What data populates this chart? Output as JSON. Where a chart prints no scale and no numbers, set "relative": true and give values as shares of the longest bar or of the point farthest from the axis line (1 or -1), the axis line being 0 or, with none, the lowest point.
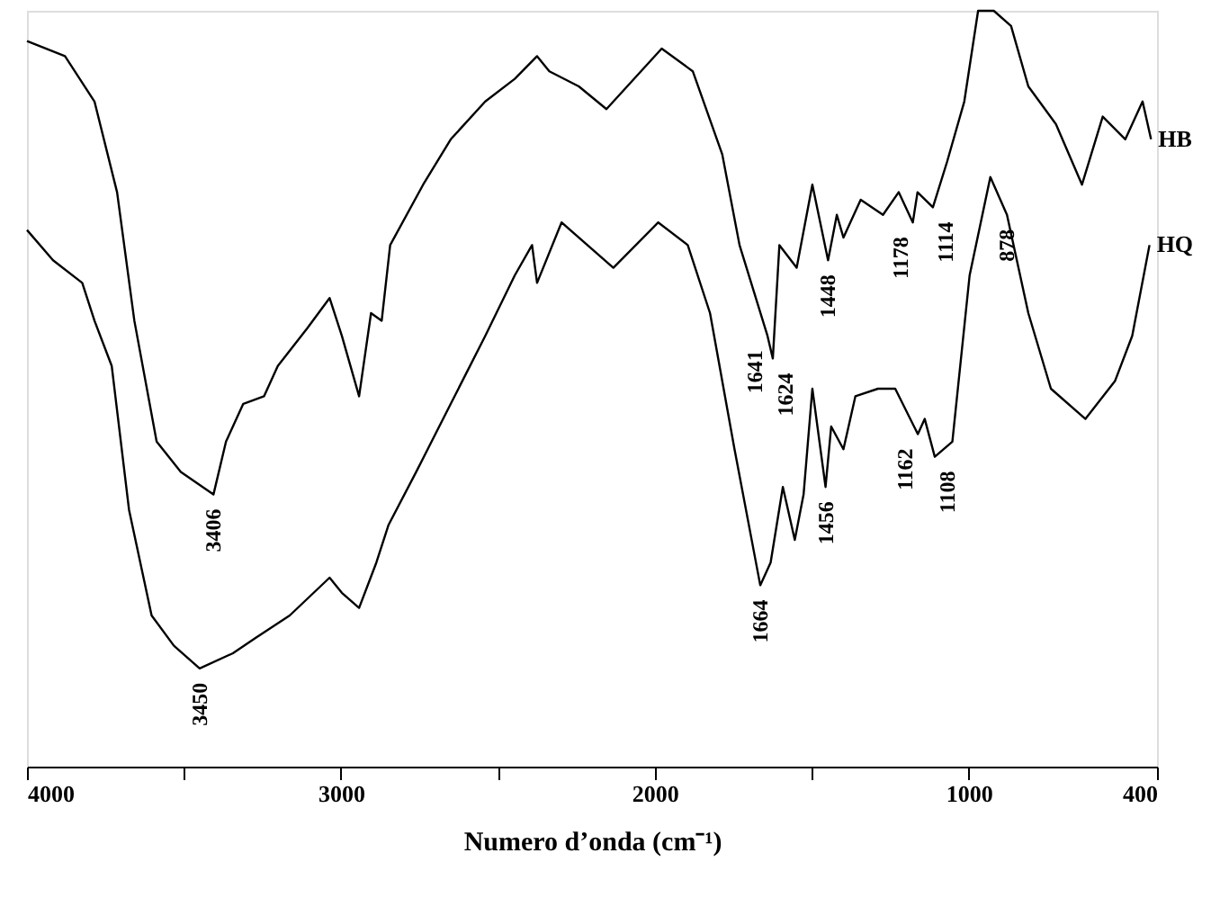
{
  "chart_data": {
    "type": "line",
    "relative": true,
    "xlabel": "Numero d’onda (cm⁻¹)",
    "xlim": [
      4000,
      400
    ],
    "xticks": [
      4000,
      {
        "value": 3500,
        "label": null
      },
      3000,
      {
        "value": 2500,
        "label": null
      },
      2000,
      {
        "value": 1500,
        "label": null
      },
      1000,
      400
    ],
    "grid": false,
    "legend": false,
    "marker": "none",
    "line_style": "solid",
    "series": [
      {
        "name": "HB",
        "color": "#000000",
        "x": [
          4000,
          3879,
          3785,
          3713,
          3658,
          3587,
          3510,
          3406,
          3366,
          3311,
          3245,
          3201,
          3107,
          3036,
          2997,
          2942,
          2904,
          2870,
          2843,
          2738,
          2650,
          2540,
          2446,
          2375,
          2336,
          2242,
          2154,
          1978,
          1879,
          1785,
          1730,
          1641,
          1624,
          1603,
          1548,
          1498,
          1448,
          1420,
          1399,
          1344,
          1273,
          1223,
          1178,
          1163,
          1114,
          1069,
          1014,
          970,
          920,
          865,
          810,
          722,
          639,
          573,
          501,
          446,
          419
        ],
        "values": [
          0.96,
          0.94,
          0.88,
          0.76,
          0.59,
          0.43,
          0.39,
          0.36,
          0.43,
          0.48,
          0.49,
          0.53,
          0.58,
          0.62,
          0.57,
          0.49,
          0.6,
          0.59,
          0.69,
          0.77,
          0.83,
          0.88,
          0.91,
          0.94,
          0.92,
          0.9,
          0.87,
          0.95,
          0.92,
          0.81,
          0.69,
          0.57,
          0.54,
          0.69,
          0.66,
          0.77,
          0.67,
          0.73,
          0.7,
          0.75,
          0.73,
          0.76,
          0.72,
          0.76,
          0.74,
          0.8,
          0.88,
          1.0,
          1.0,
          0.98,
          0.9,
          0.85,
          0.77,
          0.86,
          0.83,
          0.88,
          0.83
        ]
      },
      {
        "name": "HQ",
        "color": "#000000",
        "x": [
          4000,
          3917,
          3824,
          3785,
          3730,
          3675,
          3603,
          3532,
          3450,
          3344,
          3273,
          3163,
          3036,
          2997,
          2942,
          2887,
          2848,
          2760,
          2650,
          2540,
          2446,
          2391,
          2375,
          2297,
          2132,
          1989,
          1895,
          1824,
          1746,
          1664,
          1631,
          1592,
          1554,
          1526,
          1498,
          1456,
          1438,
          1399,
          1361,
          1289,
          1234,
          1162,
          1140,
          1108,
          1052,
          997,
          931,
          878,
          810,
          738,
          628,
          534,
          479,
          424
        ],
        "values": [
          0.71,
          0.67,
          0.64,
          0.59,
          0.53,
          0.34,
          0.2,
          0.16,
          0.13,
          0.15,
          0.17,
          0.2,
          0.25,
          0.23,
          0.21,
          0.27,
          0.32,
          0.39,
          0.48,
          0.57,
          0.65,
          0.69,
          0.64,
          0.72,
          0.66,
          0.72,
          0.69,
          0.6,
          0.42,
          0.24,
          0.27,
          0.37,
          0.3,
          0.36,
          0.5,
          0.37,
          0.45,
          0.42,
          0.49,
          0.5,
          0.5,
          0.44,
          0.46,
          0.41,
          0.43,
          0.65,
          0.78,
          0.73,
          0.6,
          0.5,
          0.46,
          0.51,
          0.57,
          0.69
        ]
      }
    ],
    "annotations": [
      {
        "text": "3406",
        "x": 3406,
        "y": 0.36
      },
      {
        "text": "1641",
        "x": 1641,
        "y": 0.57
      },
      {
        "text": "1624",
        "x": 1624,
        "y": 0.54
      },
      {
        "text": "1448",
        "x": 1448,
        "y": 0.67
      },
      {
        "text": "1178",
        "x": 1178,
        "y": 0.72
      },
      {
        "text": "1114",
        "x": 1114,
        "y": 0.74
      },
      {
        "text": "878",
        "x": 878,
        "y": 0.73
      },
      {
        "text": "3450",
        "x": 3450,
        "y": 0.13
      },
      {
        "text": "1664",
        "x": 1664,
        "y": 0.24
      },
      {
        "text": "1456",
        "x": 1456,
        "y": 0.37
      },
      {
        "text": "1162",
        "x": 1162,
        "y": 0.44
      },
      {
        "text": "1108",
        "x": 1108,
        "y": 0.41
      }
    ]
  }
}
